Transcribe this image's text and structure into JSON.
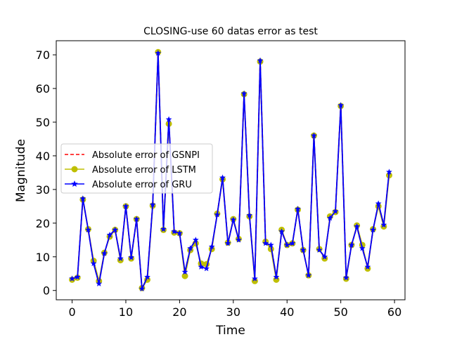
{
  "chart_data": {
    "type": "line",
    "title": "CLOSING-use 60 datas error as test",
    "xlabel": "Time",
    "ylabel": "Magnitude",
    "xlim": [
      -2.95,
      61.95
    ],
    "ylim": [
      -2.77,
      74.19
    ],
    "xticks": [
      0,
      10,
      20,
      30,
      40,
      50,
      60
    ],
    "yticks": [
      0,
      10,
      20,
      30,
      40,
      50,
      60,
      70
    ],
    "legend_position": "center-left",
    "grid": false,
    "x": [
      0,
      1,
      2,
      3,
      4,
      5,
      6,
      7,
      8,
      9,
      10,
      11,
      12,
      13,
      14,
      15,
      16,
      17,
      18,
      19,
      20,
      21,
      22,
      23,
      24,
      25,
      26,
      27,
      28,
      29,
      30,
      31,
      32,
      33,
      34,
      35,
      36,
      37,
      38,
      39,
      40,
      41,
      42,
      43,
      44,
      45,
      46,
      47,
      48,
      49,
      50,
      51,
      52,
      53,
      54,
      55,
      56,
      57,
      58,
      59
    ],
    "series": [
      {
        "name": "Absolute error of GSNPI",
        "color": "#ff0000",
        "style": "dashed",
        "marker": "none",
        "values": [
          3.5,
          4.0,
          27.3,
          18.0,
          8.0,
          2.0,
          11.0,
          16.5,
          18.0,
          9.5,
          25.0,
          9.8,
          21.2,
          0.5,
          4.0,
          25.5,
          70.5,
          18.2,
          50.8,
          17.5,
          17.0,
          5.5,
          12.5,
          15.0,
          7.0,
          6.5,
          13.0,
          22.5,
          33.5,
          14.0,
          21.0,
          15.0,
          58.5,
          22.3,
          3.5,
          68.3,
          14.0,
          13.5,
          4.0,
          17.5,
          13.5,
          14.0,
          24.2,
          12.0,
          4.5,
          46.0,
          12.0,
          10.0,
          21.5,
          23.5,
          55.0,
          3.8,
          13.5,
          19.0,
          12.5,
          7.0,
          18.0,
          25.8,
          19.5,
          35.2
        ]
      },
      {
        "name": "Absolute error of LSTM",
        "color": "#bfbf00",
        "style": "solid",
        "marker": "circle",
        "values": [
          3.2,
          3.8,
          27.0,
          18.2,
          8.8,
          2.8,
          11.2,
          16.0,
          18.0,
          9.0,
          25.0,
          9.5,
          21.2,
          0.7,
          3.2,
          25.2,
          70.8,
          18.0,
          49.5,
          17.2,
          17.0,
          4.3,
          12.0,
          14.0,
          8.0,
          7.8,
          12.3,
          22.8,
          33.0,
          14.2,
          21.2,
          15.3,
          58.3,
          22.0,
          2.8,
          68.0,
          14.5,
          12.3,
          3.2,
          18.0,
          13.5,
          14.0,
          24.0,
          12.0,
          4.5,
          46.0,
          12.3,
          9.5,
          22.0,
          23.3,
          54.8,
          3.5,
          13.5,
          19.3,
          13.5,
          6.5,
          18.2,
          25.0,
          19.0,
          34.2
        ]
      },
      {
        "name": "Absolute error of GRU",
        "color": "#0000ff",
        "style": "solid",
        "marker": "star",
        "values": [
          3.5,
          4.0,
          27.3,
          18.0,
          8.0,
          2.0,
          11.0,
          16.5,
          18.0,
          9.5,
          25.0,
          9.8,
          21.2,
          0.5,
          4.0,
          25.5,
          70.5,
          18.2,
          50.8,
          17.5,
          17.0,
          5.5,
          12.5,
          15.0,
          7.0,
          6.5,
          13.0,
          22.5,
          33.5,
          14.0,
          21.0,
          15.0,
          58.5,
          22.3,
          3.5,
          68.3,
          14.0,
          13.5,
          4.0,
          17.5,
          13.5,
          14.0,
          24.2,
          12.0,
          4.5,
          46.0,
          12.0,
          10.0,
          21.5,
          23.5,
          55.0,
          3.8,
          13.5,
          19.0,
          12.5,
          7.0,
          18.0,
          25.8,
          19.5,
          35.2
        ]
      }
    ]
  }
}
